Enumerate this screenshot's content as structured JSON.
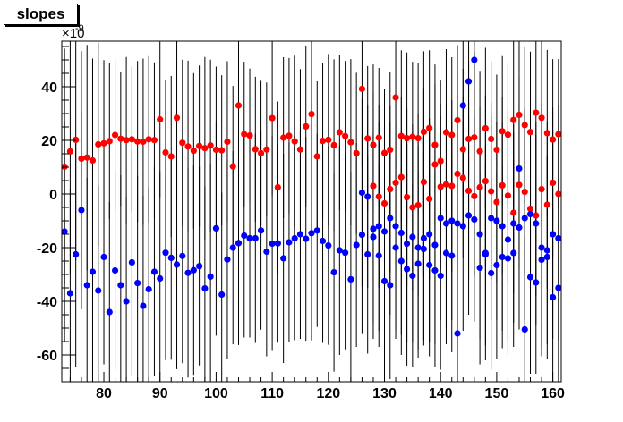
{
  "chart_data": {
    "type": "scatter",
    "title": "slopes",
    "xlabel": "",
    "ylabel": "",
    "y_multiplier_label": "×10",
    "y_multiplier_exponent": "-9",
    "xlim": [
      72.5,
      161.5
    ],
    "ylim": [
      -70,
      57
    ],
    "x_ticks": [
      80,
      90,
      100,
      110,
      120,
      130,
      140,
      150,
      160
    ],
    "y_ticks": [
      -60,
      -40,
      -20,
      0,
      20,
      40
    ],
    "grid": false,
    "error_bars": true,
    "series": [
      {
        "color": "#ff0000",
        "points": [
          [
            73.0,
            10.2,
            44
          ],
          [
            74.0,
            15.9,
            46
          ],
          [
            75.0,
            20.2,
            45
          ],
          [
            76.0,
            13.2,
            40
          ],
          [
            77.0,
            13.6,
            42
          ],
          [
            78.0,
            12.5,
            38
          ],
          [
            79.0,
            18.5,
            38
          ],
          [
            80.0,
            18.9,
            31
          ],
          [
            81.0,
            19.7,
            29
          ],
          [
            82.0,
            22.0,
            28
          ],
          [
            83.0,
            20.6,
            25
          ],
          [
            84.0,
            20.1,
            31
          ],
          [
            85.0,
            20.4,
            27
          ],
          [
            86.0,
            19.6,
            30
          ],
          [
            87.0,
            19.5,
            31
          ],
          [
            88.0,
            20.4,
            31
          ],
          [
            89.0,
            20.1,
            29
          ],
          [
            90.0,
            27.8,
            29
          ],
          [
            91.0,
            15.5,
            27
          ],
          [
            92.0,
            14.0,
            30
          ],
          [
            93.0,
            28.4,
            31
          ],
          [
            94.0,
            19.1,
            31
          ],
          [
            95.0,
            17.7,
            32
          ],
          [
            96.0,
            16.1,
            29
          ],
          [
            97.0,
            17.9,
            30
          ],
          [
            98.0,
            17.1,
            34
          ],
          [
            99.0,
            18.1,
            32
          ],
          [
            100.0,
            16.5,
            31
          ],
          [
            101.0,
            16.3,
            28
          ],
          [
            102.0,
            19.5,
            30
          ],
          [
            103.0,
            10.3,
            30
          ],
          [
            104.0,
            33.0,
            29
          ],
          [
            105.0,
            22.3,
            27
          ],
          [
            106.0,
            21.8,
            25
          ],
          [
            107.0,
            16.7,
            27
          ],
          [
            108.0,
            15.2,
            27
          ],
          [
            109.0,
            16.6,
            25
          ],
          [
            110.0,
            28.3,
            29
          ],
          [
            111.0,
            2.5,
            32
          ],
          [
            112.0,
            21.0,
            30
          ],
          [
            113.0,
            21.7,
            29
          ],
          [
            114.0,
            19.6,
            32
          ],
          [
            115.0,
            16.6,
            30
          ],
          [
            116.0,
            25.2,
            30
          ],
          [
            117.0,
            29.8,
            30
          ],
          [
            118.0,
            14.0,
            28
          ],
          [
            119.0,
            19.8,
            29
          ],
          [
            120.0,
            20.2,
            32
          ],
          [
            121.0,
            18.2,
            32
          ],
          [
            122.0,
            23.0,
            29
          ],
          [
            123.0,
            21.6,
            28
          ],
          [
            124.0,
            19.3,
            31
          ],
          [
            125.0,
            15.2,
            30
          ],
          [
            126.0,
            39.2,
            29
          ],
          [
            127.0,
            20.7,
            27
          ],
          [
            128.0,
            18.3,
            30
          ],
          [
            129.0,
            21.0,
            26
          ],
          [
            130.0,
            15.3,
            24
          ],
          [
            131.0,
            16.5,
            29
          ],
          [
            132.0,
            36.0,
            26
          ],
          [
            133.0,
            21.6,
            32
          ],
          [
            134.0,
            20.8,
            32
          ],
          [
            135.0,
            21.3,
            28
          ],
          [
            136.0,
            20.8,
            28
          ],
          [
            137.0,
            23.2,
            30
          ],
          [
            138.0,
            24.6,
            29
          ],
          [
            139.0,
            18.3,
            30
          ],
          [
            140.0,
            12.3,
            30
          ],
          [
            141.0,
            23.0,
            31
          ],
          [
            142.0,
            22.0,
            29
          ],
          [
            143.0,
            27.5,
            28
          ],
          [
            144.0,
            16.7,
            30
          ],
          [
            145.0,
            20.5,
            29
          ],
          [
            146.0,
            21.1,
            32
          ],
          [
            147.0,
            15.9,
            30
          ],
          [
            148.0,
            24.5,
            30
          ],
          [
            149.0,
            20.5,
            29
          ],
          [
            150.0,
            16.5,
            28
          ],
          [
            151.0,
            23.4,
            28
          ],
          [
            152.0,
            22.1,
            27
          ],
          [
            153.0,
            27.6,
            32
          ],
          [
            154.0,
            29.5,
            29
          ],
          [
            155.0,
            25.7,
            29
          ],
          [
            156.0,
            23.1,
            30
          ],
          [
            157.0,
            30.3,
            30
          ],
          [
            158.0,
            28.4,
            31
          ],
          [
            159.0,
            22.7,
            31
          ],
          [
            160.0,
            20.3,
            30
          ],
          [
            161.0,
            22.3,
            28
          ]
        ]
      },
      {
        "color": "#ff0000",
        "points": [
          [
            128.0,
            3.0,
            35
          ],
          [
            129.0,
            -1.0,
            34
          ],
          [
            130.0,
            -3.5,
            33
          ],
          [
            131.0,
            1.8,
            31
          ],
          [
            132.0,
            4.2,
            32
          ],
          [
            133.0,
            6.3,
            30
          ],
          [
            134.0,
            -1.2,
            33
          ],
          [
            135.0,
            -5.0,
            31
          ],
          [
            136.0,
            -4.2,
            34
          ],
          [
            137.0,
            4.5,
            35
          ],
          [
            138.0,
            -1.8,
            30
          ],
          [
            139.0,
            11.0,
            30
          ],
          [
            140.0,
            2.7,
            31
          ],
          [
            141.0,
            3.6,
            30
          ],
          [
            142.0,
            3.0,
            32
          ],
          [
            143.0,
            7.5,
            31
          ],
          [
            144.0,
            6.0,
            30
          ],
          [
            145.0,
            1.2,
            33
          ],
          [
            146.0,
            -0.8,
            30
          ],
          [
            147.0,
            2.5,
            30
          ],
          [
            148.0,
            4.8,
            32
          ],
          [
            149.0,
            1.0,
            33
          ],
          [
            150.0,
            -3.0,
            30
          ],
          [
            151.0,
            3.2,
            33
          ],
          [
            152.0,
            -0.6,
            32
          ],
          [
            153.0,
            -7.0,
            30
          ],
          [
            154.0,
            3.4,
            31
          ],
          [
            155.0,
            0.8,
            31
          ],
          [
            156.0,
            -5.5,
            30
          ],
          [
            157.0,
            -8.0,
            30
          ],
          [
            158.0,
            1.8,
            32
          ],
          [
            159.0,
            -4.0,
            31
          ],
          [
            160.0,
            4.2,
            28
          ],
          [
            161.0,
            0.0,
            33
          ]
        ]
      },
      {
        "color": "#0000ff",
        "points": [
          [
            73.0,
            -14.0,
            41
          ],
          [
            74.0,
            -37.0,
            39
          ],
          [
            75.0,
            -22.5,
            42
          ],
          [
            76.0,
            -6.0,
            37
          ],
          [
            77.0,
            -34.0,
            40
          ],
          [
            78.0,
            -29.0,
            42
          ],
          [
            79.0,
            -36.0,
            39
          ],
          [
            80.0,
            -23.5,
            40
          ],
          [
            81.0,
            -44.0,
            41
          ],
          [
            82.0,
            -28.5,
            37
          ],
          [
            83.0,
            -34.0,
            41
          ],
          [
            84.0,
            -40.0,
            39
          ],
          [
            85.0,
            -25.5,
            42
          ],
          [
            86.0,
            -33.2,
            40
          ],
          [
            87.0,
            -41.7,
            41
          ],
          [
            88.0,
            -35.5,
            38
          ],
          [
            89.0,
            -29.0,
            39
          ],
          [
            90.0,
            -31.5,
            40
          ],
          [
            91.0,
            -21.9,
            40
          ],
          [
            92.0,
            -23.8,
            38
          ],
          [
            93.0,
            -26.3,
            39
          ],
          [
            94.0,
            -23.1,
            40
          ],
          [
            95.0,
            -29.4,
            39
          ],
          [
            96.0,
            -28.4,
            39
          ],
          [
            97.0,
            -26.9,
            37
          ],
          [
            98.0,
            -35.2,
            38
          ],
          [
            99.0,
            -30.8,
            42
          ],
          [
            100.0,
            -12.8,
            40
          ],
          [
            101.0,
            -37.5,
            38
          ],
          [
            102.0,
            -24.4,
            37
          ],
          [
            103.0,
            -20.0,
            36
          ],
          [
            104.0,
            -18.3,
            38
          ],
          [
            105.0,
            -15.5,
            38
          ],
          [
            106.0,
            -16.5,
            37
          ],
          [
            107.0,
            -16.5,
            39
          ],
          [
            108.0,
            -13.6,
            37
          ],
          [
            109.0,
            -21.5,
            39
          ],
          [
            110.0,
            -18.5,
            40
          ],
          [
            111.0,
            -18.4,
            37
          ],
          [
            112.0,
            -24.0,
            39
          ],
          [
            113.0,
            -18.0,
            37
          ],
          [
            114.0,
            -16.5,
            38
          ],
          [
            115.0,
            -15.0,
            39
          ],
          [
            116.0,
            -16.7,
            38
          ],
          [
            117.0,
            -14.6,
            40
          ],
          [
            118.0,
            -13.6,
            36
          ],
          [
            119.0,
            -17.5,
            38
          ],
          [
            120.0,
            -19.2,
            37
          ],
          [
            121.0,
            -29.2,
            37
          ],
          [
            122.0,
            -21.0,
            39
          ],
          [
            123.0,
            -21.9,
            36
          ],
          [
            124.0,
            -31.8,
            40
          ],
          [
            125.0,
            -19.0,
            38
          ],
          [
            126.0,
            -15.2,
            37
          ],
          [
            127.0,
            -22.5,
            37
          ],
          [
            128.0,
            -16.0,
            38
          ],
          [
            129.0,
            -12.0,
            39
          ],
          [
            130.0,
            -14.0,
            38
          ],
          [
            131.0,
            -9.0,
            36
          ],
          [
            132.0,
            -12.0,
            39
          ],
          [
            133.0,
            -14.5,
            38
          ],
          [
            134.0,
            -18.5,
            37
          ],
          [
            135.0,
            -16.0,
            39
          ],
          [
            136.0,
            -20.0,
            38
          ],
          [
            137.0,
            -16.5,
            38
          ],
          [
            138.0,
            -15.0,
            40
          ],
          [
            139.0,
            -19.0,
            37
          ],
          [
            140.0,
            -9.0,
            38
          ],
          [
            141.0,
            -11.0,
            39
          ],
          [
            142.0,
            -10.0,
            37
          ],
          [
            143.0,
            -11.0,
            38
          ],
          [
            144.0,
            -12.0,
            39
          ],
          [
            145.0,
            -8.0,
            37
          ],
          [
            146.0,
            -9.5,
            38
          ],
          [
            147.0,
            -15.0,
            39
          ],
          [
            148.0,
            -22.0,
            40
          ],
          [
            149.0,
            -9.0,
            38
          ],
          [
            150.0,
            -10.0,
            37
          ],
          [
            151.0,
            -12.0,
            39
          ],
          [
            152.0,
            -17.0,
            38
          ],
          [
            153.0,
            -11.0,
            37
          ],
          [
            154.0,
            -12.5,
            38
          ],
          [
            155.0,
            -9.0,
            38
          ],
          [
            156.0,
            -7.5,
            39
          ],
          [
            157.0,
            -11.0,
            38
          ],
          [
            158.0,
            -20.0,
            37
          ],
          [
            159.0,
            -23.5,
            38
          ],
          [
            160.0,
            -15.0,
            39
          ],
          [
            161.0,
            -16.5,
            38
          ]
        ]
      },
      {
        "color": "#0000ff",
        "points": [
          [
            126.0,
            0.5,
            35
          ],
          [
            127.0,
            -1.0,
            34
          ],
          [
            128.0,
            -13.0,
            36
          ],
          [
            129.0,
            -23.0,
            34
          ],
          [
            130.0,
            -32.5,
            36
          ],
          [
            131.0,
            -34.0,
            35
          ],
          [
            132.0,
            -20.0,
            34
          ],
          [
            133.0,
            -25.0,
            35
          ],
          [
            134.0,
            -28.0,
            36
          ],
          [
            135.0,
            -30.5,
            34
          ],
          [
            136.0,
            -26.0,
            35
          ],
          [
            137.0,
            -20.5,
            36
          ],
          [
            138.0,
            -26.5,
            34
          ],
          [
            139.0,
            -28.5,
            36
          ],
          [
            140.0,
            -30.5,
            35
          ],
          [
            141.0,
            -22.0,
            34
          ],
          [
            142.0,
            -23.0,
            36
          ],
          [
            143.0,
            -52.0,
            35
          ],
          [
            144.0,
            33.0,
            34
          ],
          [
            145.0,
            42.0,
            35
          ],
          [
            146.0,
            50.0,
            34
          ],
          [
            147.0,
            -27.5,
            36
          ],
          [
            148.0,
            -22.5,
            34
          ],
          [
            149.0,
            -29.5,
            36
          ],
          [
            150.0,
            -26.5,
            35
          ],
          [
            151.0,
            -23.5,
            34
          ],
          [
            152.0,
            -24.0,
            36
          ],
          [
            153.0,
            -22.0,
            35
          ],
          [
            154.0,
            9.5,
            34
          ],
          [
            155.0,
            -50.5,
            35
          ],
          [
            156.0,
            -31.0,
            36
          ],
          [
            157.0,
            -33.0,
            34
          ],
          [
            158.0,
            -24.5,
            36
          ],
          [
            159.0,
            -21.0,
            35
          ],
          [
            160.0,
            -38.5,
            34
          ],
          [
            161.0,
            -35.0,
            35
          ]
        ]
      }
    ]
  }
}
